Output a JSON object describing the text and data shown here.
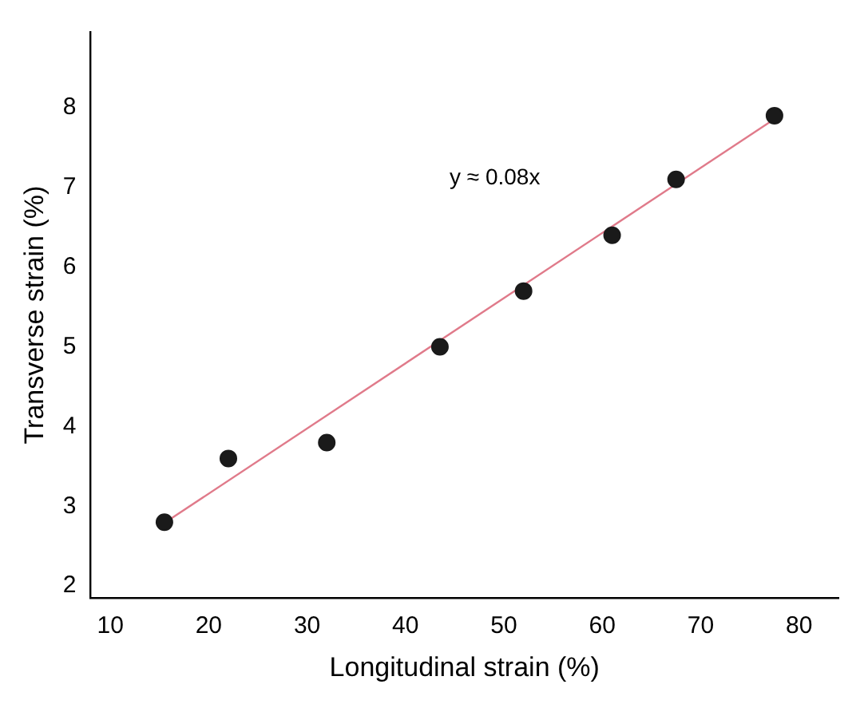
{
  "chart_data": {
    "type": "scatter",
    "xlabel": "Longitudinal strain (%)",
    "ylabel": "Transverse strain (%)",
    "annotations": [
      "y ≈ 0.08x"
    ],
    "xlim": [
      8,
      84
    ],
    "xticks": [
      10,
      20,
      30,
      40,
      50,
      60,
      70,
      80
    ],
    "ylim": [
      1.85,
      8.95
    ],
    "yticks": [
      2,
      3,
      4,
      5,
      6,
      7,
      8
    ],
    "series": [
      {
        "color": "#1a1a1a",
        "marker": "circle",
        "x": [
          15.5,
          22,
          32,
          43.5,
          52,
          61,
          67.5,
          77.5
        ],
        "values": [
          2.8,
          3.6,
          3.8,
          5.0,
          5.7,
          6.4,
          7.1,
          7.9
        ]
      },
      {
        "type": "line",
        "color": "#e07a8a",
        "marker": "none",
        "x": [
          15,
          78
        ],
        "values": [
          2.75,
          7.9
        ]
      }
    ]
  }
}
